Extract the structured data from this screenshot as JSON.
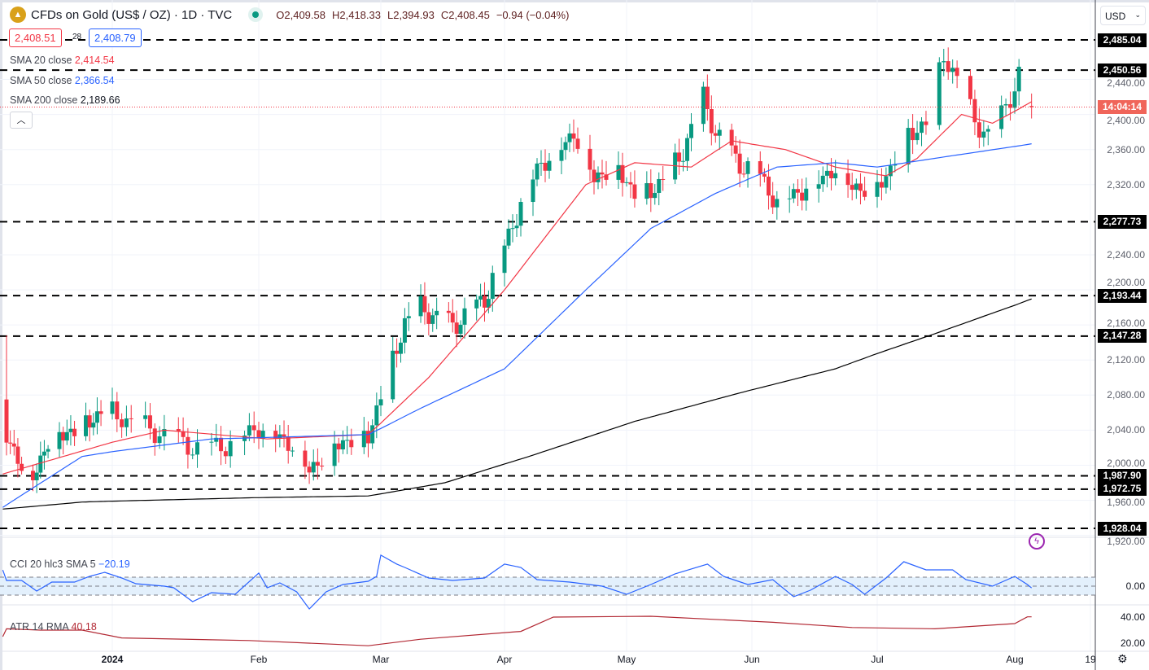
{
  "header": {
    "symbol": "CFDs on Gold (US$ / OZ) · 1D · TVC",
    "open": "O2,409.58",
    "high": "H2,418.33",
    "low": "L2,394.93",
    "close": "C2,408.45",
    "change": "−0.94 (−0.04%)",
    "bid": "2,408.51",
    "spread": "28",
    "ask": "2,408.79"
  },
  "legend": {
    "sma20_label": "SMA 20 close",
    "sma20_value": "2,414.54",
    "sma50_label": "SMA 50 close",
    "sma50_value": "2,366.54",
    "sma200_label": "SMA 200 close",
    "sma200_value": "2,189.66",
    "cci_label": "CCI 20 hlc3 SMA 5",
    "cci_value": "−20.19",
    "atr_label": "ATR 14 RMA",
    "atr_value": "40.18"
  },
  "currency": "USD",
  "countdown": "14:04:14",
  "colors": {
    "up": "#089981",
    "down": "#f23645",
    "sma20": "#f23645",
    "sma50": "#2962ff",
    "sma200": "#000000",
    "cci": "#2962ff",
    "atr": "#b22833"
  },
  "chart_data": {
    "type": "candlestick",
    "title": "CFDs on Gold (US$ / OZ) · 1D · TVC",
    "ylim": [
      1910,
      2500
    ],
    "y_ticks": [
      "2,440.00",
      "2,400.00",
      "2,360.00",
      "2,320.00",
      "2,240.00",
      "2,200.00",
      "2,160.00",
      "2,120.00",
      "2,080.00",
      "2,040.00",
      "2,000.00",
      "1,960.00",
      "1,920.00"
    ],
    "x_ticks": [
      "2024",
      "Feb",
      "Mar",
      "Apr",
      "May",
      "Jun",
      "Jul",
      "Aug",
      "19"
    ],
    "levels": [
      "2,485.04",
      "2,450.56",
      "2,277.73",
      "2,193.44",
      "2,147.28",
      "1,987.90",
      "1,972.75",
      "1,928.04"
    ],
    "last_price": 2408.45,
    "close_approx": [
      [
        "2023-12-04",
        2030
      ],
      [
        "2023-12-11",
        1985
      ],
      [
        "2023-12-15",
        2030
      ],
      [
        "2023-12-24",
        2045
      ],
      [
        "2023-12-30",
        2065
      ],
      [
        "2024-01-05",
        2050
      ],
      [
        "2024-01-12",
        2035
      ],
      [
        "2024-01-19",
        2020
      ],
      [
        "2024-01-26",
        2025
      ],
      [
        "2024-02-01",
        2045
      ],
      [
        "2024-02-09",
        2025
      ],
      [
        "2024-02-13",
        1995
      ],
      [
        "2024-02-19",
        2025
      ],
      [
        "2024-02-27",
        2035
      ],
      [
        "2024-03-01",
        2080
      ],
      [
        "2024-03-04",
        2120
      ],
      [
        "2024-03-07",
        2165
      ],
      [
        "2024-03-11",
        2180
      ],
      [
        "2024-03-19",
        2160
      ],
      [
        "2024-03-27",
        2190
      ],
      [
        "2024-04-01",
        2250
      ],
      [
        "2024-04-05",
        2300
      ],
      [
        "2024-04-09",
        2340
      ],
      [
        "2024-04-15",
        2365
      ],
      [
        "2024-04-18",
        2380
      ],
      [
        "2024-04-23",
        2330
      ],
      [
        "2024-04-29",
        2340
      ],
      [
        "2024-05-03",
        2310
      ],
      [
        "2024-05-07",
        2315
      ],
      [
        "2024-05-11",
        2330
      ],
      [
        "2024-05-15",
        2360
      ],
      [
        "2024-05-20",
        2420
      ],
      [
        "2024-05-23",
        2380
      ],
      [
        "2024-05-29",
        2345
      ],
      [
        "2024-06-03",
        2330
      ],
      [
        "2024-06-07",
        2300
      ],
      [
        "2024-06-11",
        2310
      ],
      [
        "2024-06-15",
        2320
      ],
      [
        "2024-06-21",
        2340
      ],
      [
        "2024-06-25",
        2320
      ],
      [
        "2024-06-28",
        2315
      ],
      [
        "2024-07-03",
        2330
      ],
      [
        "2024-07-08",
        2380
      ],
      [
        "2024-07-12",
        2390
      ],
      [
        "2024-07-16",
        2470
      ],
      [
        "2024-07-19",
        2440
      ],
      [
        "2024-07-23",
        2395
      ],
      [
        "2024-07-26",
        2375
      ],
      [
        "2024-07-30",
        2410
      ],
      [
        "2024-08-02",
        2445
      ],
      [
        "2024-08-05",
        2408.45
      ]
    ],
    "series": [
      {
        "name": "SMA 20 close",
        "values": [
          [
            "2023-12-03",
            1990
          ],
          [
            "2024-01-12",
            2040
          ],
          [
            "2024-02-03",
            2030
          ],
          [
            "2024-02-27",
            2035
          ],
          [
            "2024-03-13",
            2100
          ],
          [
            "2024-04-01",
            2200
          ],
          [
            "2024-04-21",
            2320
          ],
          [
            "2024-05-03",
            2345
          ],
          [
            "2024-05-17",
            2340
          ],
          [
            "2024-05-27",
            2370
          ],
          [
            "2024-06-09",
            2360
          ],
          [
            "2024-06-21",
            2340
          ],
          [
            "2024-07-03",
            2330
          ],
          [
            "2024-07-10",
            2350
          ],
          [
            "2024-07-20",
            2400
          ],
          [
            "2024-07-27",
            2390
          ],
          [
            "2024-08-05",
            2414.54
          ]
        ]
      },
      {
        "name": "SMA 50 close",
        "values": [
          [
            "2023-12-03",
            1952
          ],
          [
            "2023-12-24",
            2010
          ],
          [
            "2024-01-22",
            2030
          ],
          [
            "2024-02-27",
            2035
          ],
          [
            "2024-03-11",
            2065
          ],
          [
            "2024-04-01",
            2110
          ],
          [
            "2024-04-21",
            2200
          ],
          [
            "2024-05-07",
            2270
          ],
          [
            "2024-05-23",
            2310
          ],
          [
            "2024-06-07",
            2340
          ],
          [
            "2024-06-21",
            2345
          ],
          [
            "2024-07-01",
            2340
          ],
          [
            "2024-07-14",
            2350
          ],
          [
            "2024-08-05",
            2366.54
          ]
        ]
      },
      {
        "name": "SMA 200 close",
        "values": [
          [
            "2023-12-03",
            1950
          ],
          [
            "2023-12-24",
            1958
          ],
          [
            "2024-01-31",
            1963
          ],
          [
            "2024-02-27",
            1965
          ],
          [
            "2024-03-17",
            1980
          ],
          [
            "2024-04-07",
            2010
          ],
          [
            "2024-05-03",
            2050
          ],
          [
            "2024-05-27",
            2080
          ],
          [
            "2024-06-21",
            2110
          ],
          [
            "2024-07-14",
            2150
          ],
          [
            "2024-08-05",
            2189.66
          ]
        ]
      }
    ],
    "cci": {
      "name": "CCI 20 hlc3 SMA 5",
      "ticks": [
        "0.00"
      ],
      "band": [
        -100,
        100
      ],
      "values": [
        [
          "2023-12-03",
          180
        ],
        [
          "2023-12-04",
          64
        ],
        [
          "2023-12-08",
          64
        ],
        [
          "2023-12-12",
          -55
        ],
        [
          "2023-12-16",
          45
        ],
        [
          "2023-12-22",
          45
        ],
        [
          "2023-12-26",
          109
        ],
        [
          "2023-12-30",
          155
        ],
        [
          "2024-01-03",
          91
        ],
        [
          "2024-01-06",
          27
        ],
        [
          "2024-01-12",
          0
        ],
        [
          "2024-01-14",
          -18
        ],
        [
          "2024-01-18",
          -173
        ],
        [
          "2024-01-22",
          -73
        ],
        [
          "2024-01-27",
          -91
        ],
        [
          "2024-02-01",
          146
        ],
        [
          "2024-02-03",
          -18
        ],
        [
          "2024-02-06",
          36
        ],
        [
          "2024-02-10",
          -64
        ],
        [
          "2024-02-13",
          -255
        ],
        [
          "2024-02-17",
          -64
        ],
        [
          "2024-02-21",
          18
        ],
        [
          "2024-02-27",
          55
        ],
        [
          "2024-02-29",
          109
        ],
        [
          "2024-03-01",
          346
        ],
        [
          "2024-03-05",
          246
        ],
        [
          "2024-03-07",
          209
        ],
        [
          "2024-03-13",
          91
        ],
        [
          "2024-03-19",
          64
        ],
        [
          "2024-03-27",
          91
        ],
        [
          "2024-04-01",
          246
        ],
        [
          "2024-04-05",
          209
        ],
        [
          "2024-04-09",
          73
        ],
        [
          "2024-04-17",
          45
        ],
        [
          "2024-04-25",
          0
        ],
        [
          "2024-05-01",
          -91
        ],
        [
          "2024-05-07",
          18
        ],
        [
          "2024-05-13",
          137
        ],
        [
          "2024-05-21",
          246
        ],
        [
          "2024-05-25",
          109
        ],
        [
          "2024-05-31",
          18
        ],
        [
          "2024-06-06",
          73
        ],
        [
          "2024-06-11",
          -118
        ],
        [
          "2024-06-15",
          -45
        ],
        [
          "2024-06-21",
          109
        ],
        [
          "2024-06-25",
          18
        ],
        [
          "2024-06-28",
          -91
        ],
        [
          "2024-07-03",
          91
        ],
        [
          "2024-07-07",
          273
        ],
        [
          "2024-07-12",
          182
        ],
        [
          "2024-07-18",
          182
        ],
        [
          "2024-07-21",
          73
        ],
        [
          "2024-07-27",
          0
        ],
        [
          "2024-08-01",
          109
        ],
        [
          "2024-08-04",
          18
        ],
        [
          "2024-08-05",
          -20.19
        ]
      ]
    },
    "atr": {
      "name": "ATR 14 RMA",
      "ticks": [
        "40.00",
        "20.00"
      ],
      "values": [
        [
          "2023-12-03",
          25
        ],
        [
          "2023-12-04",
          31
        ],
        [
          "2023-12-13",
          30
        ],
        [
          "2023-12-24",
          30
        ],
        [
          "2024-01-03",
          24
        ],
        [
          "2024-01-30",
          22
        ],
        [
          "2024-02-27",
          18
        ],
        [
          "2024-03-11",
          23
        ],
        [
          "2024-04-05",
          29
        ],
        [
          "2024-04-13",
          40
        ],
        [
          "2024-05-07",
          40.6
        ],
        [
          "2024-06-06",
          36
        ],
        [
          "2024-06-25",
          32
        ],
        [
          "2024-07-14",
          31
        ],
        [
          "2024-08-01",
          35
        ],
        [
          "2024-08-04",
          40.2
        ],
        [
          "2024-08-05",
          40.18
        ]
      ]
    }
  }
}
